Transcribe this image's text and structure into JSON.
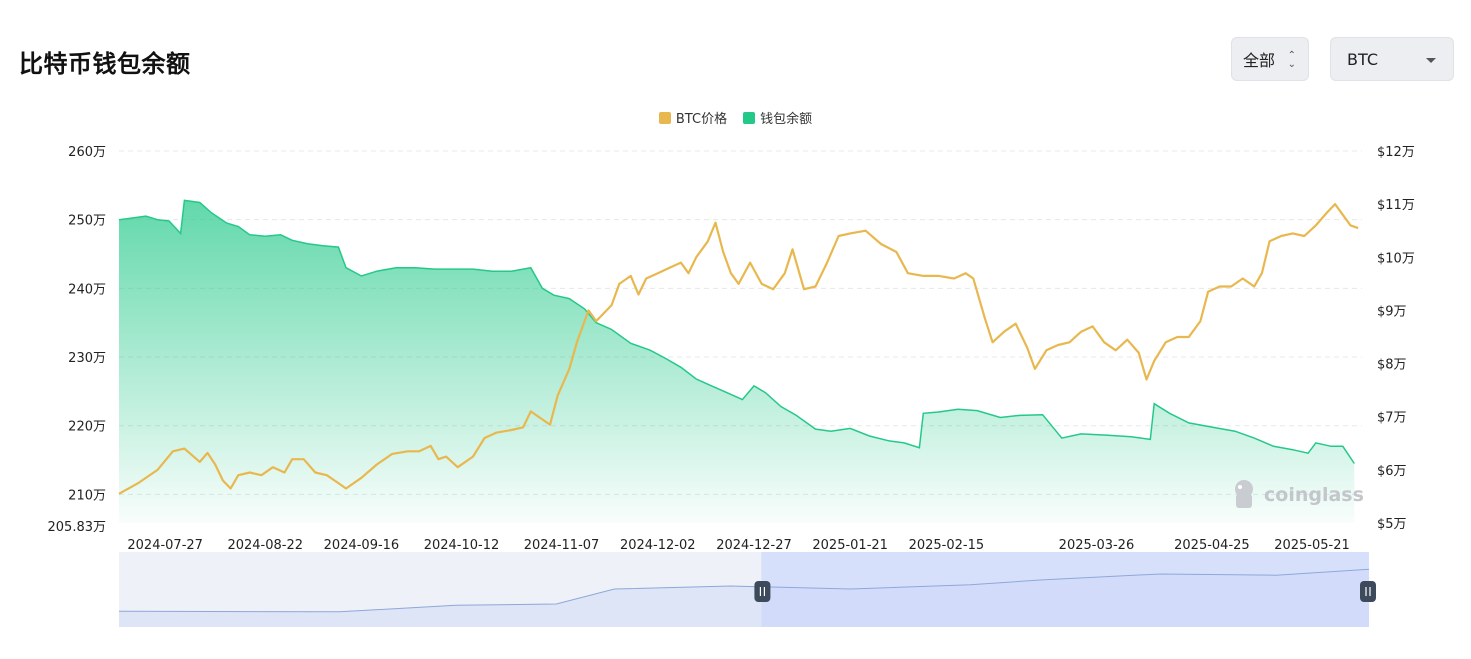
{
  "title": "比特币钱包余额",
  "controls": {
    "range_label": "全部",
    "coin_label": "BTC"
  },
  "legend": [
    {
      "label": "BTC价格",
      "color": "#e8b84f"
    },
    {
      "label": "钱包余额",
      "color": "#24c98a"
    }
  ],
  "watermark": "coinglass",
  "chart_data": {
    "type": "line",
    "x_ticks": [
      "2024-07-27",
      "2024-08-22",
      "2024-09-16",
      "2024-10-12",
      "2024-11-07",
      "2024-12-02",
      "2024-12-27",
      "2025-01-21",
      "2025-02-15",
      "2025-03-26",
      "2025-04-25",
      "2025-05-21"
    ],
    "x_range": [
      "2024-07-15",
      "2025-06-03"
    ],
    "left_axis": {
      "ticks": [
        "260万",
        "250万",
        "240万",
        "230万",
        "220万",
        "210万"
      ],
      "min_label": "205.83万",
      "range": [
        2058300,
        2600000
      ]
    },
    "right_axis": {
      "ticks": [
        "$12万",
        "$11万",
        "$10万",
        "$9万",
        "$8万",
        "$7万",
        "$6万",
        "$5万"
      ],
      "range": [
        50000,
        120000
      ]
    },
    "series": [
      {
        "name": "钱包余额",
        "kind": "area",
        "axis": "left",
        "color": "#24c98a",
        "points": [
          [
            "2024-07-15",
            2500000
          ],
          [
            "2024-07-18",
            2502000
          ],
          [
            "2024-07-22",
            2505000
          ],
          [
            "2024-07-25",
            2500000
          ],
          [
            "2024-07-28",
            2498000
          ],
          [
            "2024-07-31",
            2480000
          ],
          [
            "2024-08-01",
            2528000
          ],
          [
            "2024-08-05",
            2525000
          ],
          [
            "2024-08-08",
            2510000
          ],
          [
            "2024-08-12",
            2495000
          ],
          [
            "2024-08-15",
            2490000
          ],
          [
            "2024-08-18",
            2478000
          ],
          [
            "2024-08-22",
            2476000
          ],
          [
            "2024-08-26",
            2478000
          ],
          [
            "2024-08-29",
            2470000
          ],
          [
            "2024-09-02",
            2465000
          ],
          [
            "2024-09-06",
            2462000
          ],
          [
            "2024-09-10",
            2460000
          ],
          [
            "2024-09-12",
            2430000
          ],
          [
            "2024-09-16",
            2418000
          ],
          [
            "2024-09-20",
            2425000
          ],
          [
            "2024-09-25",
            2430000
          ],
          [
            "2024-09-30",
            2430000
          ],
          [
            "2024-10-05",
            2428000
          ],
          [
            "2024-10-10",
            2428000
          ],
          [
            "2024-10-15",
            2428000
          ],
          [
            "2024-10-20",
            2425000
          ],
          [
            "2024-10-25",
            2425000
          ],
          [
            "2024-10-30",
            2430000
          ],
          [
            "2024-11-02",
            2400000
          ],
          [
            "2024-11-05",
            2390000
          ],
          [
            "2024-11-09",
            2385000
          ],
          [
            "2024-11-13",
            2370000
          ],
          [
            "2024-11-16",
            2350000
          ],
          [
            "2024-11-20",
            2340000
          ],
          [
            "2024-11-25",
            2320000
          ],
          [
            "2024-11-30",
            2310000
          ],
          [
            "2024-12-04",
            2298000
          ],
          [
            "2024-12-08",
            2285000
          ],
          [
            "2024-12-12",
            2268000
          ],
          [
            "2024-12-16",
            2258000
          ],
          [
            "2024-12-20",
            2248000
          ],
          [
            "2024-12-24",
            2238000
          ],
          [
            "2024-12-27",
            2258000
          ],
          [
            "2024-12-30",
            2248000
          ],
          [
            "2025-01-03",
            2228000
          ],
          [
            "2025-01-07",
            2215000
          ],
          [
            "2025-01-12",
            2195000
          ],
          [
            "2025-01-16",
            2192000
          ],
          [
            "2025-01-21",
            2196000
          ],
          [
            "2025-01-26",
            2185000
          ],
          [
            "2025-01-31",
            2178000
          ],
          [
            "2025-02-04",
            2175000
          ],
          [
            "2025-02-08",
            2168000
          ],
          [
            "2025-02-09",
            2218000
          ],
          [
            "2025-02-13",
            2220000
          ],
          [
            "2025-02-18",
            2224000
          ],
          [
            "2025-02-23",
            2222000
          ],
          [
            "2025-03-01",
            2212000
          ],
          [
            "2025-03-06",
            2215000
          ],
          [
            "2025-03-12",
            2216000
          ],
          [
            "2025-03-17",
            2182000
          ],
          [
            "2025-03-22",
            2188000
          ],
          [
            "2025-03-29",
            2186000
          ],
          [
            "2025-04-04",
            2184000
          ],
          [
            "2025-04-09",
            2180000
          ],
          [
            "2025-04-10",
            2232000
          ],
          [
            "2025-04-14",
            2218000
          ],
          [
            "2025-04-19",
            2204000
          ],
          [
            "2025-04-25",
            2198000
          ],
          [
            "2025-05-01",
            2192000
          ],
          [
            "2025-05-06",
            2182000
          ],
          [
            "2025-05-11",
            2170000
          ],
          [
            "2025-05-16",
            2165000
          ],
          [
            "2025-05-20",
            2160000
          ],
          [
            "2025-05-22",
            2175000
          ],
          [
            "2025-05-26",
            2170000
          ],
          [
            "2025-05-29",
            2170000
          ],
          [
            "2025-06-01",
            2145000
          ]
        ]
      },
      {
        "name": "BTC价格",
        "kind": "line",
        "axis": "right",
        "color": "#e8b84f",
        "points": [
          [
            "2024-07-15",
            55500
          ],
          [
            "2024-07-20",
            57500
          ],
          [
            "2024-07-25",
            60000
          ],
          [
            "2024-07-29",
            63500
          ],
          [
            "2024-08-01",
            64000
          ],
          [
            "2024-08-05",
            61500
          ],
          [
            "2024-08-07",
            63200
          ],
          [
            "2024-08-09",
            61000
          ],
          [
            "2024-08-11",
            58000
          ],
          [
            "2024-08-13",
            56500
          ],
          [
            "2024-08-15",
            59000
          ],
          [
            "2024-08-18",
            59500
          ],
          [
            "2024-08-21",
            59000
          ],
          [
            "2024-08-24",
            60500
          ],
          [
            "2024-08-27",
            59500
          ],
          [
            "2024-08-29",
            62000
          ],
          [
            "2024-09-01",
            62000
          ],
          [
            "2024-09-04",
            59500
          ],
          [
            "2024-09-07",
            59000
          ],
          [
            "2024-09-10",
            57500
          ],
          [
            "2024-09-12",
            56500
          ],
          [
            "2024-09-16",
            58500
          ],
          [
            "2024-09-20",
            61000
          ],
          [
            "2024-09-24",
            63000
          ],
          [
            "2024-09-28",
            63500
          ],
          [
            "2024-10-01",
            63500
          ],
          [
            "2024-10-04",
            64500
          ],
          [
            "2024-10-06",
            62000
          ],
          [
            "2024-10-08",
            62500
          ],
          [
            "2024-10-11",
            60500
          ],
          [
            "2024-10-15",
            62500
          ],
          [
            "2024-10-18",
            66000
          ],
          [
            "2024-10-21",
            67000
          ],
          [
            "2024-10-25",
            67500
          ],
          [
            "2024-10-28",
            68000
          ],
          [
            "2024-10-30",
            71000
          ],
          [
            "2024-11-02",
            69500
          ],
          [
            "2024-11-04",
            68500
          ],
          [
            "2024-11-06",
            74000
          ],
          [
            "2024-11-09",
            79000
          ],
          [
            "2024-11-11",
            84000
          ],
          [
            "2024-11-14",
            90000
          ],
          [
            "2024-11-16",
            88000
          ],
          [
            "2024-11-20",
            91000
          ],
          [
            "2024-11-22",
            95000
          ],
          [
            "2024-11-25",
            96500
          ],
          [
            "2024-11-27",
            93000
          ],
          [
            "2024-11-29",
            96000
          ],
          [
            "2024-12-02",
            97000
          ],
          [
            "2024-12-05",
            98000
          ],
          [
            "2024-12-08",
            99000
          ],
          [
            "2024-12-10",
            97000
          ],
          [
            "2024-12-12",
            100000
          ],
          [
            "2024-12-15",
            103000
          ],
          [
            "2024-12-17",
            106500
          ],
          [
            "2024-12-19",
            101000
          ],
          [
            "2024-12-21",
            97000
          ],
          [
            "2024-12-23",
            95000
          ],
          [
            "2024-12-26",
            99000
          ],
          [
            "2024-12-29",
            95000
          ],
          [
            "2025-01-01",
            94000
          ],
          [
            "2025-01-04",
            97000
          ],
          [
            "2025-01-06",
            101500
          ],
          [
            "2025-01-09",
            94000
          ],
          [
            "2025-01-12",
            94500
          ],
          [
            "2025-01-15",
            99000
          ],
          [
            "2025-01-18",
            104000
          ],
          [
            "2025-01-21",
            104500
          ],
          [
            "2025-01-25",
            105000
          ],
          [
            "2025-01-29",
            102500
          ],
          [
            "2025-02-02",
            101000
          ],
          [
            "2025-02-05",
            97000
          ],
          [
            "2025-02-09",
            96500
          ],
          [
            "2025-02-13",
            96500
          ],
          [
            "2025-02-17",
            96000
          ],
          [
            "2025-02-20",
            97000
          ],
          [
            "2025-02-22",
            96000
          ],
          [
            "2025-02-25",
            88500
          ],
          [
            "2025-02-27",
            84000
          ],
          [
            "2025-03-02",
            86000
          ],
          [
            "2025-03-05",
            87500
          ],
          [
            "2025-03-08",
            83000
          ],
          [
            "2025-03-10",
            79000
          ],
          [
            "2025-03-13",
            82500
          ],
          [
            "2025-03-16",
            83500
          ],
          [
            "2025-03-19",
            84000
          ],
          [
            "2025-03-22",
            86000
          ],
          [
            "2025-03-25",
            87000
          ],
          [
            "2025-03-28",
            84000
          ],
          [
            "2025-03-31",
            82500
          ],
          [
            "2025-04-03",
            84500
          ],
          [
            "2025-04-06",
            82000
          ],
          [
            "2025-04-08",
            77000
          ],
          [
            "2025-04-10",
            80500
          ],
          [
            "2025-04-13",
            84000
          ],
          [
            "2025-04-16",
            85000
          ],
          [
            "2025-04-19",
            85000
          ],
          [
            "2025-04-22",
            88000
          ],
          [
            "2025-04-24",
            93500
          ],
          [
            "2025-04-27",
            94500
          ],
          [
            "2025-04-30",
            94500
          ],
          [
            "2025-05-03",
            96000
          ],
          [
            "2025-05-06",
            94500
          ],
          [
            "2025-05-08",
            97000
          ],
          [
            "2025-05-10",
            103000
          ],
          [
            "2025-05-13",
            104000
          ],
          [
            "2025-05-16",
            104500
          ],
          [
            "2025-05-19",
            104000
          ],
          [
            "2025-05-22",
            106000
          ],
          [
            "2025-05-25",
            108500
          ],
          [
            "2025-05-27",
            110000
          ],
          [
            "2025-05-29",
            108000
          ],
          [
            "2025-05-31",
            106000
          ],
          [
            "2025-06-02",
            105500
          ]
        ]
      }
    ],
    "navigator": {
      "selected_range": [
        "2024-12-28",
        "2025-06-03"
      ],
      "points": [
        [
          "2024-07-15",
          0.18
        ],
        [
          "2024-09-10",
          0.17
        ],
        [
          "2024-10-10",
          0.28
        ],
        [
          "2024-11-05",
          0.3
        ],
        [
          "2024-11-20",
          0.55
        ],
        [
          "2024-12-20",
          0.6
        ],
        [
          "2025-01-20",
          0.55
        ],
        [
          "2025-02-20",
          0.62
        ],
        [
          "2025-03-10",
          0.7
        ],
        [
          "2025-04-10",
          0.8
        ],
        [
          "2025-05-10",
          0.78
        ],
        [
          "2025-05-20",
          0.82
        ],
        [
          "2025-06-03",
          0.88
        ]
      ]
    },
    "grid": true,
    "legend_position": "top-center"
  }
}
